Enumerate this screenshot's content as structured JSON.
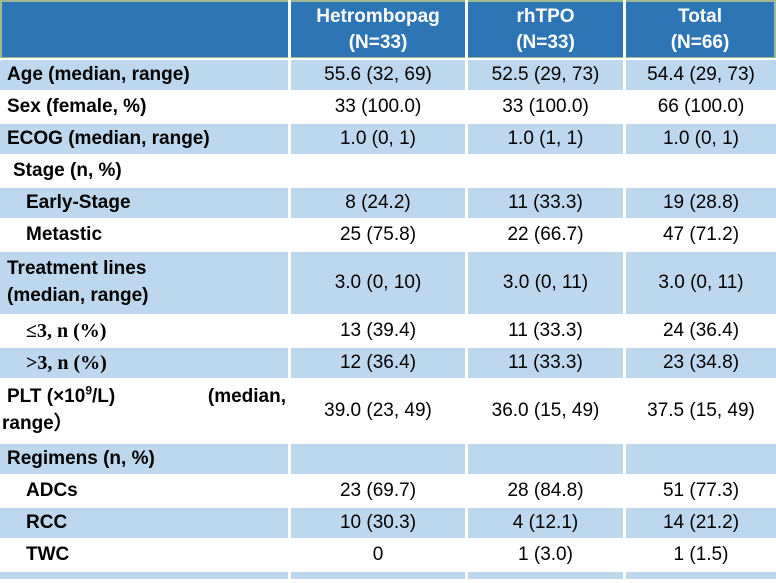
{
  "table": {
    "header": {
      "corner_label": "",
      "columns": [
        {
          "name": "Hetrombopag",
          "n": "(N=33)"
        },
        {
          "name": "rhTPO",
          "n": "(N=33)"
        },
        {
          "name": "Total",
          "n": "(N=66)"
        }
      ]
    },
    "rows": [
      {
        "label": "Age (median, range)",
        "cells": [
          "55.6 (32, 69)",
          "52.5 (29, 73)",
          "54.4 (29, 73)"
        ]
      },
      {
        "label": "Sex (female, %)",
        "cells": [
          "33 (100.0)",
          "33 (100.0)",
          "66 (100.0)"
        ]
      },
      {
        "label": "ECOG (median, range)",
        "cells": [
          "1.0 (0, 1)",
          "1.0 (1, 1)",
          "1.0 (0, 1)"
        ]
      },
      {
        "label": "Stage (n, %)",
        "cells": [
          "",
          "",
          ""
        ]
      },
      {
        "label": "Early-Stage",
        "cells": [
          "8 (24.2)",
          "11 (33.3)",
          "19 (28.8)"
        ]
      },
      {
        "label": "Metastic",
        "cells": [
          "25 (75.8)",
          "22 (66.7)",
          "47 (71.2)"
        ]
      },
      {
        "label_line1": "Treatment lines",
        "label_line2": "(median, range)",
        "cells": [
          "3.0 (0, 10)",
          "3.0 (0, 11)",
          "3.0 (0, 11)"
        ]
      },
      {
        "label": "≤3, n (%)",
        "cells": [
          "13 (39.4)",
          "11 (33.3)",
          "24 (36.4)"
        ]
      },
      {
        "label": ">3, n (%)",
        "cells": [
          "12 (36.4)",
          "11 (33.3)",
          "23 (34.8)"
        ]
      },
      {
        "plt": {
          "prefix": "PLT (×10",
          "sup": "9",
          "suffix": "/L)",
          "right": "(median,",
          "line2": "range）"
        },
        "cells": [
          "39.0 (23, 49)",
          "36.0 (15, 49)",
          "37.5 (15, 49)"
        ]
      },
      {
        "label": "Regimens (n, %)",
        "cells": [
          "",
          "",
          ""
        ]
      },
      {
        "label": "ADCs",
        "cells": [
          "23 (69.7)",
          "28 (84.8)",
          "51 (77.3)"
        ]
      },
      {
        "label": "RCC",
        "cells": [
          "10 (30.3)",
          "4 (12.1)",
          "14 (21.2)"
        ]
      },
      {
        "label": "TWC",
        "cells": [
          "0",
          "1 (3.0)",
          "1 (1.5)"
        ]
      }
    ],
    "colors": {
      "header_bg": "#2E75B6",
      "band_bg": "#BDD7EE",
      "header_text": "#FFFFFF",
      "body_text": "#000000",
      "edge_green": "#9DBB8E"
    }
  }
}
